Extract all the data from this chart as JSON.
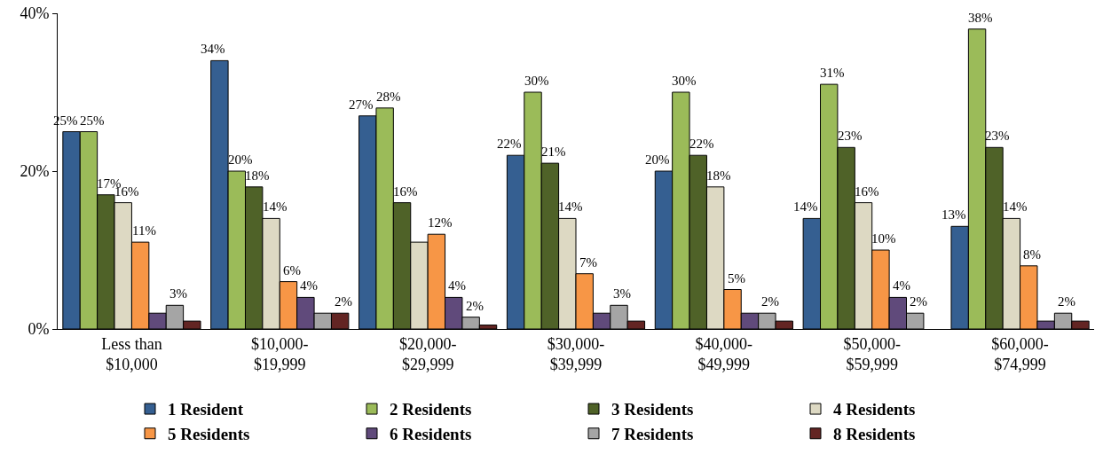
{
  "chart_data": {
    "type": "bar",
    "categories": [
      "Less than\n$10,000",
      "$10,000-\n$19,999",
      "$20,000-\n$29,999",
      "$30,000-\n$39,999",
      "$40,000-\n$49,999",
      "$50,000-\n$59,999",
      "$60,000-\n$74,999"
    ],
    "series": [
      {
        "name": "1 Resident",
        "color": "#355f91",
        "values": [
          25,
          34,
          27,
          22,
          20,
          14,
          13
        ],
        "value_labels": [
          "25%",
          "34%",
          "27%",
          "22%",
          "20%",
          "14%",
          "13%"
        ]
      },
      {
        "name": "2 Residents",
        "color": "#9bbb59",
        "values": [
          25,
          20,
          28,
          30,
          30,
          31,
          38
        ],
        "value_labels": [
          "25%",
          "20%",
          "28%",
          "30%",
          "30%",
          "31%",
          "38%"
        ]
      },
      {
        "name": "3 Residents",
        "color": "#4f6228",
        "values": [
          17,
          18,
          16,
          21,
          22,
          23,
          23
        ],
        "value_labels": [
          "17%",
          "18%",
          "16%",
          "21%",
          "22%",
          "23%",
          "23%"
        ]
      },
      {
        "name": "4 Residents",
        "color": "#ddd9c3",
        "values": [
          16,
          14,
          11,
          14,
          18,
          16,
          14
        ],
        "value_labels": [
          "16%",
          "14%",
          null,
          "14%",
          "18%",
          "16%",
          "14%"
        ]
      },
      {
        "name": "5 Residents",
        "color": "#f79646",
        "values": [
          11,
          6,
          12,
          7,
          5,
          10,
          8
        ],
        "value_labels": [
          "11%",
          "6%",
          "12%",
          "7%",
          "5%",
          "10%",
          "8%"
        ]
      },
      {
        "name": "6 Residents",
        "color": "#604a7b",
        "values": [
          2,
          4,
          4,
          2,
          2,
          4,
          1
        ],
        "value_labels": [
          null,
          "4%",
          "4%",
          null,
          null,
          "4%",
          null
        ]
      },
      {
        "name": "7 Residents",
        "color": "#a5a5a5",
        "values": [
          3,
          2,
          1.5,
          3,
          2,
          2,
          2
        ],
        "value_labels": [
          "3%",
          null,
          "2%",
          "3%",
          "2%",
          "2%",
          "2%"
        ]
      },
      {
        "name": "8 Residents",
        "color": "#632523",
        "values": [
          1,
          2,
          0.5,
          1,
          1,
          0,
          1
        ],
        "value_labels": [
          null,
          "2%",
          null,
          null,
          null,
          null,
          null
        ]
      }
    ],
    "ylim": [
      0,
      40
    ],
    "yticks": [
      {
        "value": 0,
        "label": "0%"
      },
      {
        "value": 20,
        "label": "20%"
      },
      {
        "value": 40,
        "label": "40%"
      }
    ],
    "grid": false,
    "legend": "bottom"
  }
}
